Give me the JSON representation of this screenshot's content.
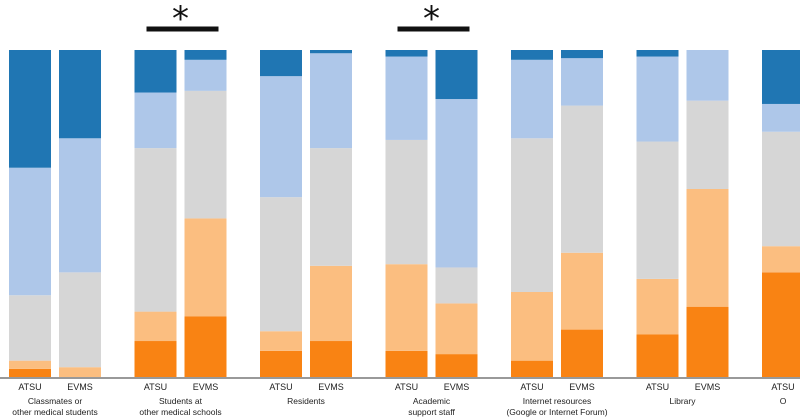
{
  "chart_data": {
    "type": "bar",
    "stacked": true,
    "stack_order": "bottom-to-top",
    "ylim": [
      0,
      100
    ],
    "segment_colors": [
      "#f98313",
      "#fbbe80",
      "#d6d6d6",
      "#aec7e9",
      "#2076b3"
    ],
    "groups": [
      {
        "label_lines": [
          "Classmates or",
          "other medical students"
        ],
        "significant": false,
        "bars": [
          {
            "name": "ATSU",
            "values": [
              2.5,
              2.5,
              20,
              39,
              36
            ]
          },
          {
            "name": "EVMS",
            "values": [
              0,
              3,
              29,
              41,
              27
            ]
          }
        ]
      },
      {
        "label_lines": [
          "Students at",
          "other medical schools"
        ],
        "significant": true,
        "bars": [
          {
            "name": "ATSU",
            "values": [
              11,
              9,
              50,
              17,
              13
            ]
          },
          {
            "name": "EVMS",
            "values": [
              18.5,
              30,
              39,
              9.5,
              3
            ]
          }
        ]
      },
      {
        "label_lines": [
          "Residents"
        ],
        "significant": false,
        "bars": [
          {
            "name": "ATSU",
            "values": [
              8,
              6,
              41,
              37,
              8
            ]
          },
          {
            "name": "EVMS",
            "values": [
              11,
              23,
              36,
              29,
              1
            ]
          }
        ]
      },
      {
        "label_lines": [
          "Academic",
          "support staff"
        ],
        "significant": true,
        "bars": [
          {
            "name": "ATSU",
            "values": [
              8,
              26.5,
              38,
              25.5,
              2
            ]
          },
          {
            "name": "EVMS",
            "values": [
              7,
              15.5,
              11,
              51.5,
              15
            ]
          }
        ]
      },
      {
        "label_lines": [
          "Internet resources",
          "(Google or Internet Forum)"
        ],
        "significant": false,
        "bars": [
          {
            "name": "ATSU",
            "values": [
              5,
              21,
              47,
              24,
              3
            ]
          },
          {
            "name": "EVMS",
            "values": [
              14.5,
              23.5,
              45,
              14.5,
              2.5
            ]
          }
        ]
      },
      {
        "label_lines": [
          "Library"
        ],
        "significant": false,
        "bars": [
          {
            "name": "ATSU",
            "values": [
              13,
              17,
              42,
              26,
              2
            ]
          },
          {
            "name": "EVMS",
            "values": [
              21.5,
              36,
              27,
              15.5,
              0
            ]
          }
        ]
      },
      {
        "label_lines": [
          "O"
        ],
        "significant": false,
        "bars": [
          {
            "name": "ATSU",
            "values": [
              32,
              8,
              35,
              8.5,
              16.5
            ]
          }
        ]
      }
    ]
  }
}
